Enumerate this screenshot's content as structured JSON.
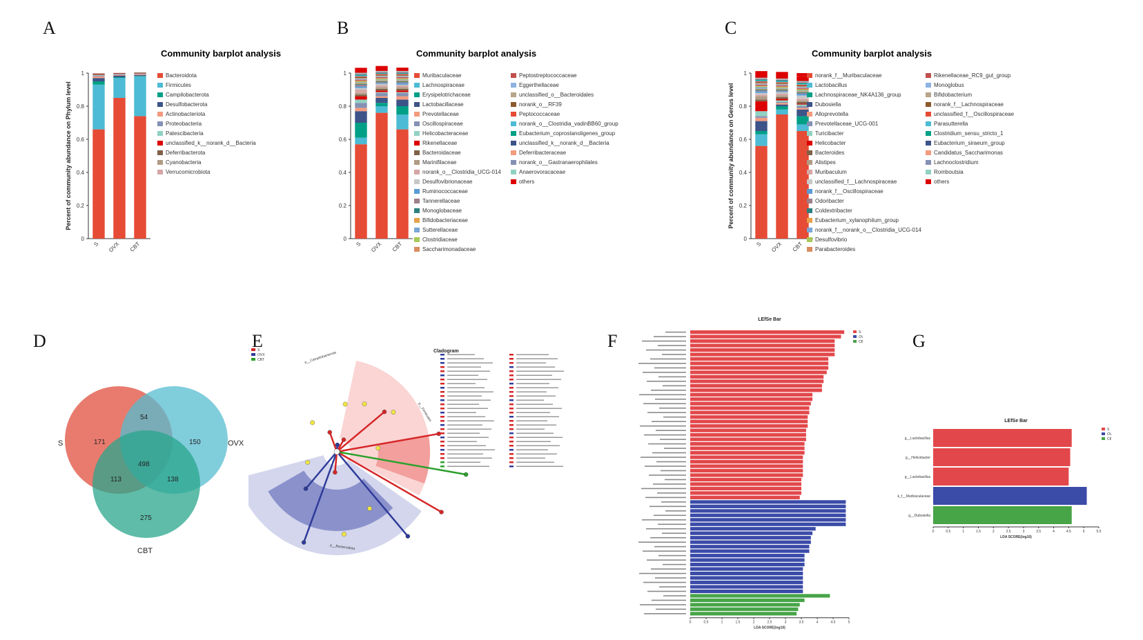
{
  "panel_labels": [
    "A",
    "B",
    "C",
    "D",
    "E",
    "F",
    "G"
  ],
  "colors": [
    "#e64b35",
    "#4dbbd5",
    "#00a087",
    "#3c5488",
    "#f39b7f",
    "#8491b4",
    "#91d1c2",
    "#dc0000",
    "#7e6148",
    "#b09c85",
    "#d5a6a6",
    "#c8c8c8",
    "#5b9bd5",
    "#9e7f8c",
    "#2f7f7f",
    "#e8a04a",
    "#7aa6d6",
    "#a7c957",
    "#d98c5f",
    "#c0504d",
    "#8db3e2",
    "#b8a58a",
    "#8b5a2b"
  ],
  "chart_data": [
    {
      "id": "A",
      "type": "bar",
      "stacked": true,
      "title": "Community barplot analysis",
      "ylabel": "Percent of community abundance on Phylum level",
      "ylim": [
        0,
        1
      ],
      "yticks": [
        "0",
        "0.2",
        "0.4",
        "0.6",
        "0.8",
        "1"
      ],
      "categories": [
        "S",
        "OVX",
        "CBT"
      ],
      "series": [
        {
          "name": "Bacteroidota",
          "values": [
            0.66,
            0.85,
            0.74
          ]
        },
        {
          "name": "Firmicutes",
          "values": [
            0.27,
            0.12,
            0.24
          ]
        },
        {
          "name": "Campilobacterota",
          "values": [
            0.02,
            0.005,
            0.003
          ]
        },
        {
          "name": "Desulfobacterota",
          "values": [
            0.02,
            0.01,
            0.005
          ]
        },
        {
          "name": "Actinobacteriota",
          "values": [
            0.01,
            0.005,
            0.005
          ]
        },
        {
          "name": "Proteobacteria",
          "values": [
            0.005,
            0.004,
            0.003
          ]
        },
        {
          "name": "Patescibacteria",
          "values": [
            0.005,
            0.002,
            0.002
          ]
        },
        {
          "name": "unclassified_k__norank_d__Bacteria",
          "values": [
            0.004,
            0.002,
            0.002
          ]
        },
        {
          "name": "Deferribacterota",
          "values": [
            0.003,
            0.002,
            0.002
          ]
        },
        {
          "name": "Cyanobacteria",
          "values": [
            0.002,
            0.001,
            0.002
          ]
        },
        {
          "name": "Verrucomicrobiota",
          "values": [
            0.001,
            0.001,
            0.001
          ]
        }
      ]
    },
    {
      "id": "B",
      "type": "bar",
      "stacked": true,
      "title": "Community barplot analysis",
      "ylabel": "Percent of community abundance on Family level",
      "ylim": [
        0,
        1
      ],
      "yticks": [
        "0",
        "0.2",
        "0.4",
        "0.6",
        "0.8",
        "1"
      ],
      "categories": [
        "S",
        "OVX",
        "CBT"
      ],
      "series": [
        {
          "name": "Muribaculaceae",
          "values": [
            0.57,
            0.76,
            0.66
          ]
        },
        {
          "name": "Lachnospiraceae",
          "values": [
            0.04,
            0.04,
            0.09
          ]
        },
        {
          "name": "Erysipelotrichaceae",
          "values": [
            0.09,
            0.02,
            0.05
          ]
        },
        {
          "name": "Lactobacillaceae",
          "values": [
            0.07,
            0.03,
            0.04
          ]
        },
        {
          "name": "Prevotellaceae",
          "values": [
            0.02,
            0.01,
            0.02
          ]
        },
        {
          "name": "Oscillospiraceae",
          "values": [
            0.03,
            0.02,
            0.02
          ]
        },
        {
          "name": "Helicobacteraceae",
          "values": [
            0.02,
            0.005,
            0.005
          ]
        },
        {
          "name": "Rikenellaceae",
          "values": [
            0.02,
            0.01,
            0.01
          ]
        },
        {
          "name": "Bacteroidaceae",
          "values": [
            0.01,
            0.01,
            0.01
          ]
        },
        {
          "name": "Marinifilaceae",
          "values": [
            0.01,
            0.01,
            0.01
          ]
        },
        {
          "name": "norank_o__Clostridia_UCG-014",
          "values": [
            0.02,
            0.01,
            0.01
          ]
        },
        {
          "name": "Desulfovibrionaceae",
          "values": [
            0.01,
            0.01,
            0.005
          ]
        },
        {
          "name": "Ruminococcaceae",
          "values": [
            0.01,
            0.005,
            0.01
          ]
        },
        {
          "name": "Tannerellaceae",
          "values": [
            0.01,
            0.005,
            0.005
          ]
        },
        {
          "name": "Monoglobaceae",
          "values": [
            0.005,
            0.005,
            0.005
          ]
        },
        {
          "name": "Bifidobacteriaceae",
          "values": [
            0.005,
            0.005,
            0.005
          ]
        },
        {
          "name": "Sutterellaceae",
          "values": [
            0.005,
            0.005,
            0.005
          ]
        },
        {
          "name": "Clostridiaceae",
          "values": [
            0.005,
            0.005,
            0.005
          ]
        },
        {
          "name": "Saccharimonadaceae",
          "values": [
            0.005,
            0.005,
            0.005
          ]
        },
        {
          "name": "Peptostreptococcaceae",
          "values": [
            0.005,
            0.005,
            0.005
          ]
        },
        {
          "name": "Eggerthellaceae",
          "values": [
            0.005,
            0.005,
            0.005
          ]
        },
        {
          "name": "unclassified_o__Bacteroidales",
          "values": [
            0.005,
            0.005,
            0.005
          ]
        },
        {
          "name": "norank_o__RF39",
          "values": [
            0.005,
            0.005,
            0.005
          ]
        },
        {
          "name": "Peptococcaceae",
          "values": [
            0.005,
            0.005,
            0.005
          ]
        },
        {
          "name": "norank_o__Clostridia_vadinBB60_group",
          "values": [
            0.005,
            0.003,
            0.003
          ]
        },
        {
          "name": "Eubacterium_coprostanoligenes_group",
          "values": [
            0.005,
            0.003,
            0.003
          ]
        },
        {
          "name": "unclassified_k__norank_d__Bacteria",
          "values": [
            0.003,
            0.003,
            0.003
          ]
        },
        {
          "name": "Deferribacteraceae",
          "values": [
            0.003,
            0.003,
            0.003
          ]
        },
        {
          "name": "norank_o__Gastranaerophilales",
          "values": [
            0.003,
            0.003,
            0.003
          ]
        },
        {
          "name": "Anaerovoracaceae",
          "values": [
            0.003,
            0.003,
            0.003
          ]
        },
        {
          "name": "others",
          "values": [
            0.03,
            0.03,
            0.02
          ]
        }
      ]
    },
    {
      "id": "C",
      "type": "bar",
      "stacked": true,
      "title": "Community barplot analysis",
      "ylabel": "Percent of community abundance on Genus level",
      "ylim": [
        0,
        1
      ],
      "yticks": [
        "0",
        "0.2",
        "0.4",
        "0.6",
        "0.8",
        "1"
      ],
      "categories": [
        "S",
        "OVX",
        "CBT"
      ],
      "series": [
        {
          "name": "norank_f__Muribaculaceae",
          "values": [
            0.56,
            0.75,
            0.65
          ]
        },
        {
          "name": "Lactobacillus",
          "values": [
            0.07,
            0.03,
            0.04
          ]
        },
        {
          "name": "Lachnospiraceae_NK4A136_group",
          "values": [
            0.02,
            0.02,
            0.05
          ]
        },
        {
          "name": "Dubosiella",
          "values": [
            0.06,
            0.01,
            0.04
          ]
        },
        {
          "name": "Alloprevotella",
          "values": [
            0.02,
            0.01,
            0.01
          ]
        },
        {
          "name": "Prevotellaceae_UCG-001",
          "values": [
            0.01,
            0.005,
            0.01
          ]
        },
        {
          "name": "Turicibacter",
          "values": [
            0.03,
            0.01,
            0.01
          ]
        },
        {
          "name": "Helicobacter",
          "values": [
            0.06,
            0.01,
            0.005
          ]
        },
        {
          "name": "Bacteroides",
          "values": [
            0.01,
            0.01,
            0.01
          ]
        },
        {
          "name": "Alistipes",
          "values": [
            0.02,
            0.01,
            0.01
          ]
        },
        {
          "name": "Muribaculum",
          "values": [
            0.01,
            0.01,
            0.01
          ]
        },
        {
          "name": "unclassified_f__Lachnospiraceae",
          "values": [
            0.01,
            0.01,
            0.02
          ]
        },
        {
          "name": "norank_f__Oscillospiraceae",
          "values": [
            0.01,
            0.005,
            0.01
          ]
        },
        {
          "name": "Odoribacter",
          "values": [
            0.005,
            0.005,
            0.005
          ]
        },
        {
          "name": "Coldextribacter",
          "values": [
            0.005,
            0.005,
            0.005
          ]
        },
        {
          "name": "Eubacterium_xylanophilum_group",
          "values": [
            0.005,
            0.005,
            0.005
          ]
        },
        {
          "name": "norank_f__norank_o__Clostridia_UCG-014",
          "values": [
            0.01,
            0.005,
            0.005
          ]
        },
        {
          "name": "Desulfovibrio",
          "values": [
            0.005,
            0.005,
            0.005
          ]
        },
        {
          "name": "Parabacteroides",
          "values": [
            0.005,
            0.005,
            0.005
          ]
        },
        {
          "name": "Rikenellaceae_RC9_gut_group",
          "values": [
            0.005,
            0.005,
            0.005
          ]
        },
        {
          "name": "Monoglobus",
          "values": [
            0.005,
            0.005,
            0.005
          ]
        },
        {
          "name": "Bifidobacterium",
          "values": [
            0.005,
            0.005,
            0.005
          ]
        },
        {
          "name": "norank_f__Lachnospiraceae",
          "values": [
            0.005,
            0.005,
            0.005
          ]
        },
        {
          "name": "unclassified_f__Oscillospiraceae",
          "values": [
            0.005,
            0.005,
            0.005
          ]
        },
        {
          "name": "Parasutterella",
          "values": [
            0.005,
            0.005,
            0.005
          ]
        },
        {
          "name": "Clostridium_sensu_stricto_1",
          "values": [
            0.005,
            0.005,
            0.005
          ]
        },
        {
          "name": "Eubacterium_siraeum_group",
          "values": [
            0.003,
            0.003,
            0.003
          ]
        },
        {
          "name": "Candidatus_Saccharimonas",
          "values": [
            0.003,
            0.003,
            0.003
          ]
        },
        {
          "name": "Lachnoclostridium",
          "values": [
            0.003,
            0.003,
            0.003
          ]
        },
        {
          "name": "Romboutsia",
          "values": [
            0.003,
            0.003,
            0.003
          ]
        },
        {
          "name": "others",
          "values": [
            0.04,
            0.04,
            0.03
          ]
        }
      ]
    },
    {
      "id": "D",
      "type": "venn",
      "sets": [
        "S",
        "OVX",
        "CBT"
      ],
      "set_colors": [
        "#e25a4a",
        "#55bcd0",
        "#2aa58c"
      ],
      "regions": {
        "S": 171,
        "OVX": 150,
        "CBT": 275,
        "S_OVX": 54,
        "S_CBT": 113,
        "OVX_CBT": 138,
        "S_OVX_CBT": 498
      }
    },
    {
      "id": "E",
      "type": "cladogram",
      "title": "Cladogram",
      "legend": [
        "S",
        "OVX",
        "CBT"
      ],
      "group_colors": [
        "#d62728",
        "#2f3b9a",
        "#2ca02c"
      ],
      "labels": [
        "p__Campilobacterota",
        "p__Firmicutes",
        "p__Bacteroidota"
      ]
    },
    {
      "id": "F",
      "type": "bar",
      "orientation": "horizontal",
      "title": "LEfSe Bar",
      "xlabel": "LDA SCORE(log10)",
      "xticks": [
        "0",
        "0.5",
        "1",
        "1.5",
        "2",
        "2.5",
        "3",
        "3.5",
        "4",
        "4.5",
        "5"
      ],
      "xlim": [
        0,
        5
      ],
      "legend": [
        "S",
        "OVX",
        "CBT"
      ],
      "group_colors": [
        "#e2484b",
        "#3b4ba8",
        "#47a447"
      ],
      "groups": [
        0,
        0,
        0,
        0,
        0,
        0,
        0,
        0,
        0,
        0,
        0,
        0,
        0,
        0,
        0,
        0,
        0,
        0,
        0,
        0,
        0,
        0,
        0,
        0,
        0,
        0,
        0,
        0,
        0,
        0,
        0,
        0,
        0,
        0,
        0,
        0,
        0,
        0,
        1,
        1,
        1,
        1,
        1,
        1,
        1,
        1,
        1,
        1,
        1,
        1,
        1,
        1,
        1,
        1,
        1,
        1,
        1,
        1,
        1,
        2,
        2,
        2,
        2,
        2
      ],
      "values": [
        4.85,
        4.75,
        4.55,
        4.55,
        4.55,
        4.55,
        4.35,
        4.35,
        4.35,
        4.3,
        4.2,
        4.2,
        4.15,
        4.15,
        3.85,
        3.85,
        3.8,
        3.75,
        3.75,
        3.7,
        3.7,
        3.7,
        3.65,
        3.65,
        3.65,
        3.6,
        3.6,
        3.6,
        3.55,
        3.55,
        3.55,
        3.55,
        3.55,
        3.5,
        3.5,
        3.5,
        3.5,
        3.45,
        4.9,
        4.9,
        4.9,
        4.9,
        4.9,
        4.9,
        3.95,
        3.85,
        3.8,
        3.8,
        3.75,
        3.75,
        3.6,
        3.6,
        3.6,
        3.55,
        3.55,
        3.55,
        3.55,
        3.55,
        3.55,
        4.4,
        3.6,
        3.45,
        3.4,
        3.35
      ]
    },
    {
      "id": "G",
      "type": "bar",
      "orientation": "horizontal",
      "title": "LEfSe Bar",
      "xlabel": "LDA SCORE(log10)",
      "xticks": [
        "0",
        "0.5",
        "1",
        "1.5",
        "2",
        "2.5",
        "3",
        "3.5",
        "4",
        "4.5",
        "5",
        "5.5"
      ],
      "xlim": [
        0,
        5.5
      ],
      "legend": [
        "S",
        "OVX",
        "CBT"
      ],
      "group_colors": [
        "#e2484b",
        "#3b4ba8",
        "#47a447"
      ],
      "categories": [
        "g__Lactobacillus",
        "g__Helicobacter",
        "g__Lactobacillus",
        "g__norank_f__Muribaculaceae",
        "g__Dubosiella"
      ],
      "groups": [
        0,
        0,
        0,
        1,
        2
      ],
      "values": [
        4.6,
        4.55,
        4.5,
        5.1,
        4.6
      ]
    }
  ]
}
